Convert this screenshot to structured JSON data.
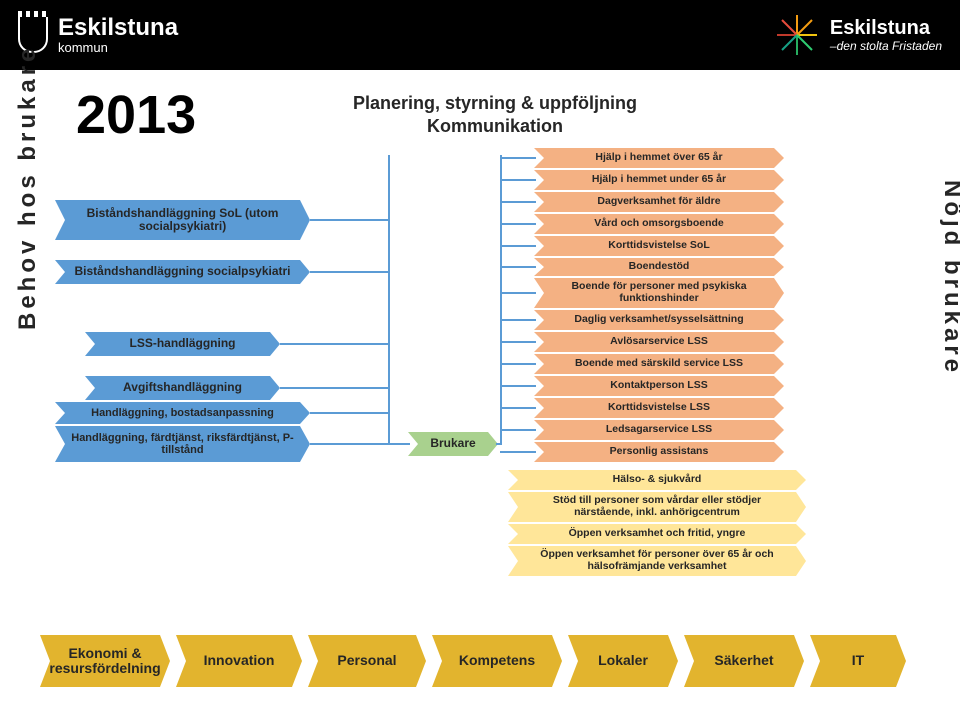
{
  "header": {
    "left_title": "Eskilstuna",
    "left_sub": "kommun",
    "right_title": "Eskilstuna",
    "right_sub": "–den stolta Fristaden"
  },
  "year": "2013",
  "plan_title_l1": "Planering, styrning & uppföljning",
  "plan_title_l2": "Kommunikation",
  "left_axis": "Behov hos brukare",
  "right_axis": "Nöjd brukare",
  "left_boxes": [
    "Biståndshandläggning SoL (utom socialpsykiatri)",
    "Biståndshandläggning socialpsykiatri",
    "LSS-handläggning",
    "Avgiftshandläggning",
    "Handläggning, bostadsanpassning",
    "Handläggning, färdtjänst, riksfärdtjänst, P-tillstånd"
  ],
  "brukare": "Brukare",
  "right_boxes": [
    "Hjälp i hemmet över 65 år",
    "Hjälp i hemmet  under 65 år",
    "Dagverksamhet  för äldre",
    "Vård och omsorgsboende",
    "Korttidsvistelse SoL",
    "Boendestöd",
    "Boende för personer med psykiska funktionshinder",
    "Daglig verksamhet/sysselsättning",
    "Avlösarservice LSS",
    "Boende med särskild service LSS",
    "Kontaktperson LSS",
    "Korttidsvistelse LSS",
    "Ledsagarservice LSS",
    "Personlig assistans"
  ],
  "yellow_boxes": [
    "Hälso- & sjukvård",
    "Stöd till personer som vårdar eller stödjer närstående, inkl. anhörigcentrum",
    "Öppen verksamhet och fritid, yngre",
    "Öppen verksamhet för personer över 65 år och hälsofrämjande verksamhet"
  ],
  "bottom": [
    "Ekonomi & resursfördelning",
    "Innovation",
    "Personal",
    "Kompetens",
    "Lokaler",
    "Säkerhet",
    "IT"
  ],
  "palette": {
    "blue": "#5b9bd5",
    "orange": "#f4b183",
    "yellow": "#ffe699",
    "gold": "#e2b42e",
    "green": "#a9d18e",
    "black": "#000000",
    "text": "#262626"
  }
}
